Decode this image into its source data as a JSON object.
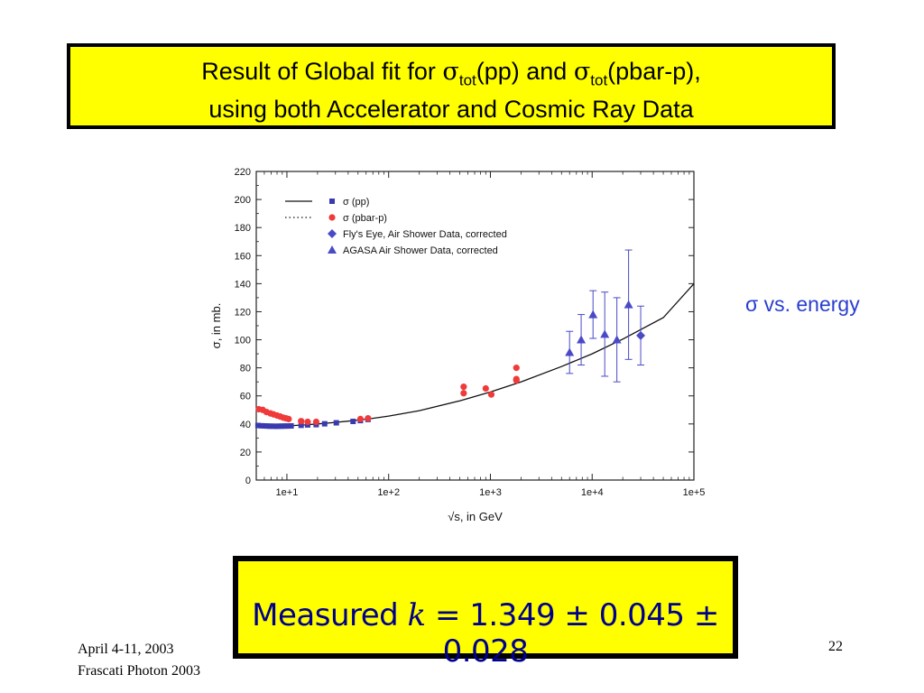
{
  "slide": {
    "title_line1_a": "Result of Global fit for ",
    "sigma": "σ",
    "tot": "tot",
    "title_line1_b": "(pp) and ",
    "title_line1_c": "(pbar-p),",
    "title_line2": "using both Accelerator and Cosmic Ray Data",
    "side_label": "σ vs. energy",
    "result_prefix": "Measured ",
    "result_k": "k",
    "result_rest": " = 1.349 ± 0.045 ± 0.028",
    "footer_date": "April 4-11, 2003",
    "footer_event": "Frascati  Photon 2003",
    "page_number": "22",
    "colors": {
      "box_fill": "#ffff00",
      "side_label": "#2a3ed0",
      "pp_points": "#3a3ab0",
      "pbarp_points": "#f03a3a",
      "cosmic_points": "#4a4ac8"
    }
  },
  "chart_data": {
    "type": "scatter",
    "xscale": "log",
    "xlim": [
      5,
      100000
    ],
    "ylim": [
      0,
      220
    ],
    "xlabel": "√s, in GeV",
    "ylabel": "σ, in mb.",
    "x_ticks": [
      10,
      100,
      1000,
      10000,
      100000
    ],
    "x_tick_labels": [
      "1e+1",
      "1e+2",
      "1e+3",
      "1e+4",
      "1e+5"
    ],
    "y_ticks": [
      0,
      20,
      40,
      60,
      80,
      100,
      120,
      140,
      160,
      180,
      200,
      220
    ],
    "legend": [
      {
        "line": "solid",
        "marker": "square",
        "label": "σ (pp)"
      },
      {
        "line": "dotted",
        "marker": "circle",
        "label": "σ (pbar-p)"
      },
      {
        "marker": "diamond",
        "label": "Fly's Eye, Air Shower Data, corrected"
      },
      {
        "marker": "triangle",
        "label": "AGASA Air Shower Data, corrected"
      }
    ],
    "fit_curve": {
      "x": [
        5,
        7,
        10,
        15,
        20,
        30,
        50,
        70,
        100,
        200,
        500,
        1000,
        2000,
        5000,
        10000,
        20000,
        50000,
        100000
      ],
      "y": [
        38.5,
        38.3,
        38.6,
        39.3,
        40.0,
        41.1,
        42.7,
        44.0,
        45.6,
        49.5,
        56.5,
        62.8,
        70.0,
        80.9,
        90.0,
        100.5,
        115.8,
        140
      ]
    },
    "series": [
      {
        "name": "σ (pp)",
        "x": [
          5.2,
          5.6,
          6.0,
          6.4,
          6.8,
          7.3,
          7.8,
          8.3,
          8.9,
          9.5,
          10.2,
          11,
          13.8,
          16,
          19.4,
          23.5,
          30.6,
          44.7,
          52.8,
          62.7
        ],
        "y": [
          38.9,
          38.7,
          38.6,
          38.5,
          38.4,
          38.4,
          38.3,
          38.4,
          38.4,
          38.5,
          38.5,
          38.6,
          39.0,
          39.3,
          39.5,
          40.1,
          40.8,
          41.8,
          42.4,
          43.2
        ]
      },
      {
        "name": "σ (pbar-p)",
        "x": [
          5.3,
          5.8,
          6.3,
          6.9,
          7.4,
          8.0,
          8.6,
          9.2,
          9.8,
          10.4,
          13.8,
          16,
          19.4,
          52.8,
          62.7,
          546,
          546,
          900,
          1020,
          1800,
          1800,
          1800
        ],
        "y": [
          50.5,
          50,
          48.5,
          47.5,
          46.8,
          46,
          45.3,
          44.5,
          44,
          43.5,
          42,
          41.5,
          41.5,
          43.5,
          44,
          61.9,
          66.5,
          65.3,
          61,
          72,
          71,
          80
        ]
      },
      {
        "name": "Fly's Eye, Air Shower Data, corrected",
        "x": [
          30000
        ],
        "y": [
          103
        ],
        "err": [
          21
        ]
      },
      {
        "name": "AGASA Air Shower Data, corrected",
        "x": [
          6000,
          7800,
          10200,
          13300,
          17500,
          22800
        ],
        "y": [
          91,
          100,
          118,
          104,
          100,
          125
        ],
        "err": [
          15,
          18,
          17,
          30,
          30,
          39
        ]
      }
    ]
  }
}
